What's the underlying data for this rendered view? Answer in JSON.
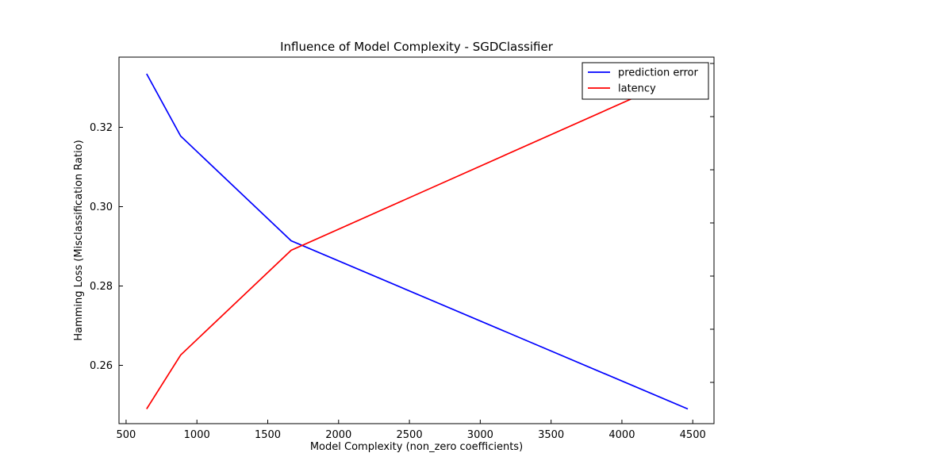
{
  "chart_data": {
    "type": "line",
    "title": "Influence of Model Complexity - SGDClassifier",
    "xlabel": "Model Complexity (non_zero coefficients)",
    "ylabel": "Hamming Loss (Misclassification Ratio)",
    "ylabel_color": "#0000ff",
    "xlim": [
      450,
      4650
    ],
    "ylim": [
      0.2453,
      0.3377
    ],
    "x_ticks": [
      500,
      1000,
      1500,
      2000,
      2500,
      3000,
      3500,
      4000,
      4500
    ],
    "y_ticks": [
      0.26,
      0.28,
      0.3,
      0.32
    ],
    "y_tick_labels": [
      "0.26",
      "0.28",
      "0.30",
      "0.32"
    ],
    "grid": false,
    "legend_position": "top-right",
    "series": [
      {
        "name": "prediction error",
        "color": "#0000ff",
        "axis": "left",
        "x": [
          645,
          885,
          1665,
          4465
        ],
        "y": [
          0.3335,
          0.3178,
          0.2914,
          0.249
        ]
      },
      {
        "name": "latency",
        "color": "#ff0000",
        "axis": "right",
        "x": [
          645,
          885,
          1665,
          4465
        ],
        "y": [
          0.249,
          0.2626,
          0.289,
          0.3335
        ]
      }
    ]
  }
}
